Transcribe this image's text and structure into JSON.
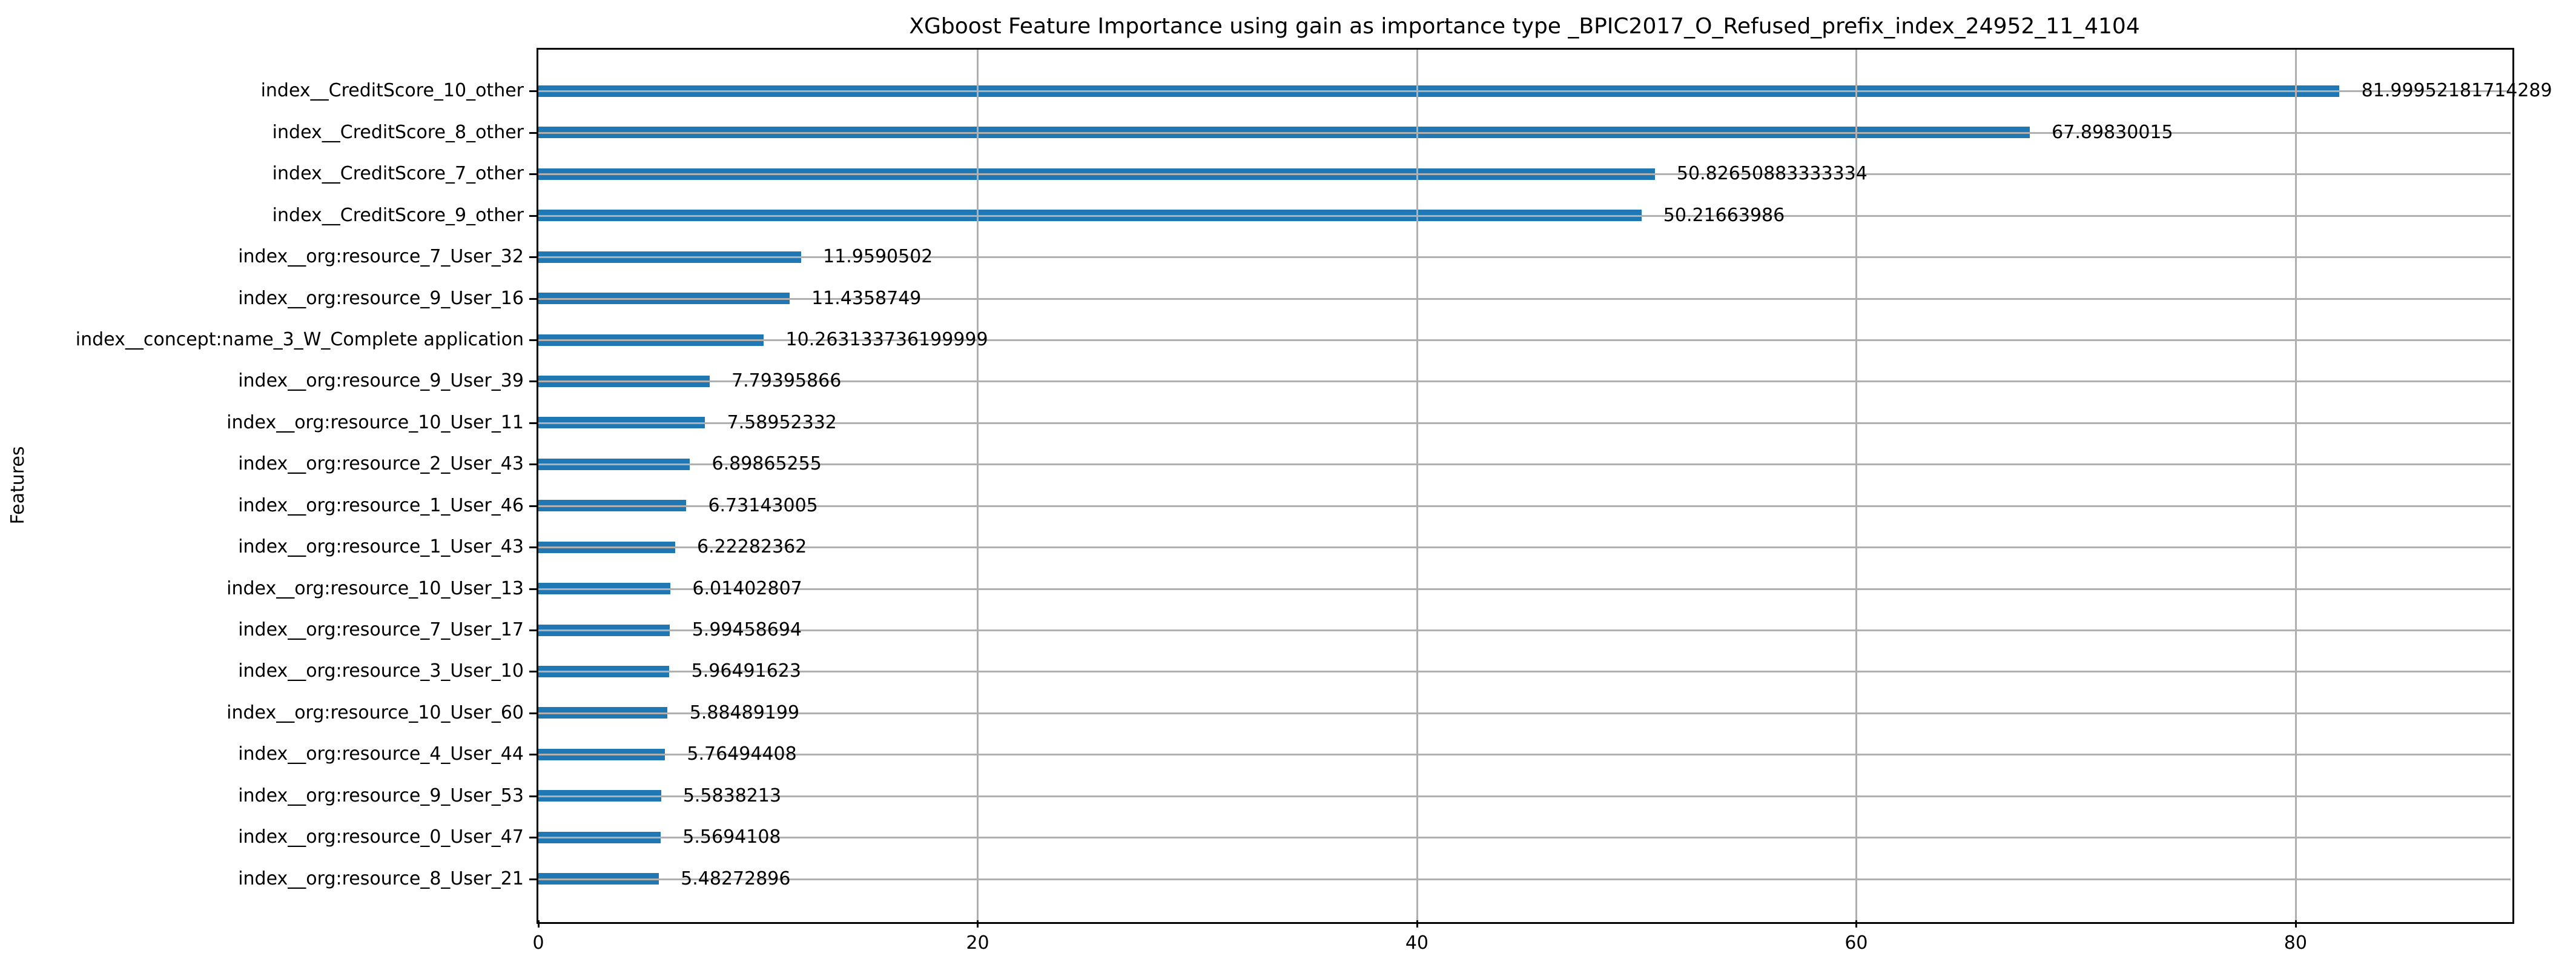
{
  "chart_data": {
    "type": "bar",
    "orientation": "horizontal",
    "title": "XGboost Feature Importance using gain as importance type _BPIC2017_O_Refused_prefix_index_24952_11_4104",
    "xlabel": "",
    "ylabel": "Features",
    "xlim": [
      0,
      89.79
    ],
    "xticks": [
      "0",
      "20",
      "40",
      "60",
      "80"
    ],
    "xtick_values": [
      0,
      20,
      40,
      60,
      80
    ],
    "grid": true,
    "legend": false,
    "bar_color": "#1f77b4",
    "grid_color": "#b0b0b0",
    "categories": [
      "index__CreditScore_10_other",
      "index__CreditScore_8_other",
      "index__CreditScore_7_other",
      "index__CreditScore_9_other",
      "index__org:resource_7_User_32",
      "index__org:resource_9_User_16",
      "index__concept:name_3_W_Complete application",
      "index__org:resource_9_User_39",
      "index__org:resource_10_User_11",
      "index__org:resource_2_User_43",
      "index__org:resource_1_User_46",
      "index__org:resource_1_User_43",
      "index__org:resource_10_User_13",
      "index__org:resource_7_User_17",
      "index__org:resource_3_User_10",
      "index__org:resource_10_User_60",
      "index__org:resource_4_User_44",
      "index__org:resource_9_User_53",
      "index__org:resource_0_User_47",
      "index__org:resource_8_User_21"
    ],
    "values": [
      81.99952181714289,
      67.89830015,
      50.82650883333334,
      50.21663986,
      11.9590502,
      11.4358749,
      10.263133736199999,
      7.79395866,
      7.58952332,
      6.89865255,
      6.73143005,
      6.22282362,
      6.01402807,
      5.99458694,
      5.96491623,
      5.88489199,
      5.76494408,
      5.5838213,
      5.5694108,
      5.48272896
    ],
    "value_labels": [
      "81.99952181714289",
      "67.89830015",
      "50.82650883333334",
      "50.21663986",
      "11.9590502",
      "11.4358749",
      "10.263133736199999",
      "7.79395866",
      "7.58952332",
      "6.89865255",
      "6.73143005",
      "6.22282362",
      "6.01402807",
      "5.99458694",
      "5.96491623",
      "5.88489199",
      "5.76494408",
      "5.5838213",
      "5.5694108",
      "5.48272896"
    ]
  }
}
